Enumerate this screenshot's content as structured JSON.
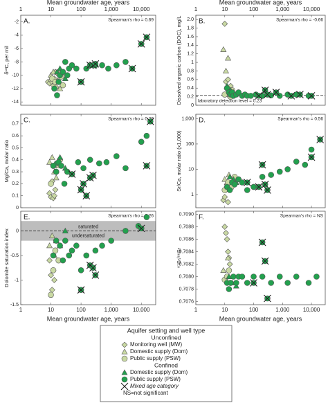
{
  "chart_data": [
    {
      "type": "scatter",
      "panel": "A.",
      "annotation": "Spearman's rho = 0.69",
      "x_label": "Mean groundwater age, years",
      "y_label": "δ¹³C, per mil",
      "xlim": [
        1,
        30000
      ],
      "xticks": [
        1,
        10,
        100,
        {
          "value": 1000,
          "label": "1,000"
        },
        {
          "value": 10000,
          "label": "10,000"
        }
      ],
      "ylim": [
        -14.5,
        -1
      ],
      "yticks": [
        -14,
        -12,
        -10,
        -8,
        -6,
        -4,
        -2
      ],
      "series": [
        {
          "x": [
            8,
            9,
            10,
            11,
            12,
            13,
            14,
            15
          ],
          "values": [
            -11,
            -11.2,
            -10.8,
            -11,
            -11.5,
            -10.5,
            -9.5,
            -11.8
          ]
        },
        {
          "x": [
            10,
            12,
            14,
            17,
            20
          ],
          "values": [
            -10,
            -9.5,
            -11,
            -10.8,
            -12
          ]
        },
        {
          "x": [
            11,
            14,
            18,
            22,
            25
          ],
          "values": [
            -10.5,
            -11,
            -9.8,
            -10.2,
            -11.5
          ]
        },
        {
          "x": [
            16,
            20,
            30
          ],
          "values": [
            -9.5,
            -9,
            -10.5
          ]
        },
        {
          "x": [
            13,
            16,
            18,
            20,
            25,
            30,
            35,
            40,
            50,
            70,
            100,
            150,
            300,
            500,
            800,
            1500,
            3000
          ],
          "values": [
            -12,
            -13,
            -11,
            -10,
            -9.5,
            -8,
            -10,
            -9,
            -8.5,
            -9,
            -11,
            -9,
            -8.5,
            -8.5,
            -9,
            -8.5,
            -8
          ]
        },
        {
          "x": [
            100,
            200,
            250,
            300,
            5000,
            10000,
            15000
          ],
          "values": [
            -11,
            -8.5,
            -8.5,
            -8.3,
            -9,
            -5.3,
            -4.3
          ]
        }
      ]
    },
    {
      "type": "scatter",
      "panel": "B.",
      "annotation": "Spearman's rho = -0.66",
      "x_label": "Mean groundwater age, years",
      "y_label": "Dissolved organic carbon (DOC), mg/L",
      "xlim": [
        1,
        30000
      ],
      "xticks": [
        1,
        10,
        100,
        {
          "value": 1000,
          "label": "1,000"
        },
        {
          "value": 10000,
          "label": "10,000"
        }
      ],
      "ylim": [
        0,
        2.1
      ],
      "yticks": [
        0,
        0.2,
        0.4,
        0.6,
        0.8,
        1,
        1.2,
        1.4,
        1.6,
        1.8,
        {
          "value": 2,
          "label": "2.0"
        }
      ],
      "detection": {
        "value": 0.23,
        "label": "laboratory detection level = 0.23"
      },
      "series": [
        {
          "x": [
            10,
            11,
            12,
            13,
            14,
            15,
            16
          ],
          "values": [
            1.9,
            0.55,
            0.4,
            0.6,
            0.3,
            0.2,
            0.45
          ]
        },
        {
          "x": [
            9,
            11,
            13,
            15
          ],
          "values": [
            1.3,
            0.8,
            1.1,
            0.35
          ]
        },
        {
          "x": [
            10,
            12,
            14,
            16,
            18
          ],
          "values": [
            0.25,
            0.4,
            0.3,
            0.2,
            0.35
          ]
        },
        {
          "x": [
            12,
            16,
            20
          ],
          "values": [
            0.45,
            0.35,
            0.3
          ]
        },
        {
          "x": [
            12,
            14,
            16,
            18,
            20,
            25,
            30,
            40,
            50,
            60,
            80,
            120,
            200,
            400,
            800,
            1500,
            3000,
            8000
          ],
          "values": [
            0.4,
            0.3,
            0.25,
            0.3,
            0.22,
            0.25,
            0.3,
            0.22,
            0.25,
            0.22,
            0.22,
            0.25,
            0.22,
            0.23,
            0.22,
            0.25,
            0.25,
            0.22
          ]
        },
        {
          "x": [
            150,
            250,
            300,
            600,
            2000,
            4000,
            10000
          ],
          "values": [
            0.22,
            0.35,
            0.25,
            0.3,
            0.22,
            0.25,
            0.22
          ]
        }
      ]
    },
    {
      "type": "scatter",
      "panel": "C.",
      "annotation": "Spearman's rho = 0.29",
      "y_label": "Mg/Ca, molar ratio",
      "xlim": [
        1,
        30000
      ],
      "xticks": [
        1,
        10,
        100,
        {
          "value": 1000,
          "label": "1,000"
        },
        {
          "value": 10000,
          "label": "10,000"
        }
      ],
      "ylim": [
        0,
        0.78
      ],
      "yticks": [
        0,
        0.1,
        0.2,
        0.3,
        0.4,
        0.5,
        0.6,
        0.7
      ],
      "series": [
        {
          "x": [
            9,
            10,
            11,
            12,
            13,
            14
          ],
          "values": [
            0.12,
            0.09,
            0.22,
            0.08,
            0.1,
            0.15
          ]
        },
        {
          "x": [
            9,
            11,
            13,
            15,
            18
          ],
          "values": [
            0.38,
            0.42,
            0.3,
            0.25,
            0.35
          ]
        },
        {
          "x": [
            10,
            12,
            15,
            20
          ],
          "values": [
            0.2,
            0.35,
            0.3,
            0.4
          ]
        },
        {
          "x": [
            14,
            20,
            30
          ],
          "values": [
            0.37,
            0.42,
            0.33
          ]
        },
        {
          "x": [
            12,
            15,
            18,
            22,
            28,
            35,
            50,
            80,
            120,
            200,
            400,
            700,
            1500,
            3000,
            10000,
            15000
          ],
          "values": [
            0.35,
            0.3,
            0.38,
            0.35,
            0.2,
            0.3,
            0.28,
            0.38,
            0.33,
            0.4,
            0.37,
            0.38,
            0.43,
            0.33,
            0.55,
            0.6
          ]
        },
        {
          "x": [
            50,
            100,
            120,
            150,
            200,
            250,
            15000,
            20000
          ],
          "values": [
            0.28,
            0.15,
            0.2,
            0.1,
            0.25,
            0.27,
            0.35,
            0.72
          ]
        }
      ]
    },
    {
      "type": "scatter",
      "panel": "D.",
      "annotation": "Spearman's rho = 0.56",
      "y_label": "Sr/Ca, molar ratio (x1,000)",
      "ylog": true,
      "xlim": [
        1,
        30000
      ],
      "xticks": [
        1,
        10,
        100,
        {
          "value": 1000,
          "label": "1,000"
        },
        {
          "value": 10000,
          "label": "10,000"
        }
      ],
      "ylim": [
        0.3,
        1500
      ],
      "yticks": [
        1,
        10,
        100,
        {
          "value": 1000,
          "label": "1,000"
        }
      ],
      "series": [
        {
          "x": [
            9,
            10,
            11,
            12,
            13
          ],
          "values": [
            0.6,
            0.8,
            1.5,
            2,
            0.5
          ]
        },
        {
          "x": [
            10,
            12,
            14,
            16
          ],
          "values": [
            4,
            3,
            6,
            2
          ]
        },
        {
          "x": [
            10,
            13,
            17,
            22
          ],
          "values": [
            1.5,
            3,
            2,
            5
          ]
        },
        {
          "x": [
            15,
            20,
            25
          ],
          "values": [
            5,
            4,
            3
          ]
        },
        {
          "x": [
            12,
            15,
            18,
            22,
            30,
            40,
            60,
            100,
            200,
            400,
            800,
            1500,
            3000,
            6000,
            10000
          ],
          "values": [
            2,
            1.5,
            3,
            2.5,
            4,
            3,
            1.5,
            2,
            5,
            6,
            8,
            10,
            20,
            15,
            60
          ]
        },
        {
          "x": [
            60,
            150,
            200,
            250,
            300,
            10000,
            20000
          ],
          "values": [
            3,
            2,
            15,
            2.5,
            1.5,
            30,
            150
          ]
        }
      ]
    },
    {
      "type": "scatter",
      "panel": "E.",
      "annotation": "Spearman's rho = 0.26",
      "x_label": "Mean groundwater age, years",
      "y_label": "Dolomite saturation index",
      "xlim": [
        1,
        30000
      ],
      "xticks": [
        1,
        10,
        100,
        {
          "value": 1000,
          "label": "1,000"
        },
        {
          "value": 10000,
          "label": "10,000"
        }
      ],
      "ylim": [
        -1.5,
        0.4
      ],
      "yticks": [
        -1.5,
        -1,
        -0.5,
        0
      ],
      "band": {
        "range": [
          -0.2,
          0.2
        ],
        "line": 0,
        "labels": [
          "saturated",
          "undersaturated"
        ]
      },
      "series": [
        {
          "x": [
            9,
            10,
            11,
            12,
            13
          ],
          "values": [
            -0.6,
            -0.9,
            -1.2,
            -0.8,
            -1
          ]
        },
        {
          "x": [
            9,
            11,
            13,
            15
          ],
          "values": [
            -0.3,
            -0.1,
            -0.5,
            -0.2
          ]
        },
        {
          "x": [
            10,
            12,
            14,
            18
          ],
          "values": [
            -1.3,
            -0.8,
            -0.4,
            -0.6
          ]
        },
        {
          "x": [
            15,
            20,
            30
          ],
          "values": [
            -0.2,
            -0.3,
            0
          ]
        },
        {
          "x": [
            12,
            15,
            20,
            25,
            30,
            40,
            50,
            70,
            100,
            150,
            300,
            500,
            1000,
            3000,
            8000,
            15000
          ],
          "values": [
            -0.5,
            -0.2,
            -0.3,
            -0.6,
            -0.2,
            -0.5,
            -0.4,
            -0.3,
            -0.8,
            -0.5,
            -0.4,
            -0.3,
            -0.2,
            0,
            0.1,
            0.28
          ]
        },
        {
          "x": [
            100,
            200,
            250,
            300,
            10000
          ],
          "values": [
            -1.2,
            -0.7,
            -0.75,
            -0.9,
            0.05
          ]
        }
      ]
    },
    {
      "type": "scatter",
      "panel": "F.",
      "annotation": "Spearman's rho = NS",
      "x_label": "Mean groundwater age, years",
      "y_label": "⁸⁷Sr/⁸⁶Sr",
      "xlim": [
        1,
        30000
      ],
      "xticks": [
        1,
        10,
        100,
        {
          "value": 1000,
          "label": "1,000"
        },
        {
          "value": 10000,
          "label": "10,000"
        }
      ],
      "ylim": [
        0.70755,
        0.70905
      ],
      "yticks": [
        0.7076,
        0.7078,
        {
          "value": 0.708,
          "label": "0.7080"
        },
        0.7082,
        0.7084,
        0.7086,
        0.7088,
        {
          "value": 0.709,
          "label": "0.7090"
        }
      ],
      "series": [
        {
          "x": [
            10,
            11,
            12,
            13,
            14,
            15
          ],
          "values": [
            0.7088,
            0.7087,
            0.7086,
            0.7084,
            0.7083,
            0.7082
          ]
        },
        {
          "x": [
            9,
            11,
            13,
            15
          ],
          "values": [
            0.7081,
            0.708,
            0.7083,
            0.7079
          ]
        },
        {
          "x": [
            10,
            12,
            14,
            16
          ],
          "values": [
            0.70795,
            0.708,
            0.7081,
            0.7079
          ]
        },
        {
          "x": [
            14,
            18,
            25
          ],
          "values": [
            0.708,
            0.7079,
            0.70785
          ]
        },
        {
          "x": [
            12,
            14,
            16,
            20,
            25,
            30,
            40,
            60,
            100,
            200,
            400,
            800,
            1500,
            3000,
            8000,
            15000
          ],
          "values": [
            0.7079,
            0.7078,
            0.7079,
            0.708,
            0.7079,
            0.708,
            0.708,
            0.7079,
            0.708,
            0.708,
            0.7079,
            0.708,
            0.7079,
            0.708,
            0.7079,
            0.708
          ]
        },
        {
          "x": [
            100,
            200,
            250,
            300
          ],
          "values": [
            0.7079,
            0.70855,
            0.70825,
            0.70765
          ]
        }
      ]
    }
  ],
  "legend": {
    "title": "Aquifer setting and well type",
    "groups": [
      {
        "heading": "Unconfined",
        "items": [
          {
            "name": "Monitoring well (MW)",
            "marker": "diamond",
            "color": "#c9d9a3"
          },
          {
            "name": "Domestic supply (Dom)",
            "marker": "triangle",
            "color": "#c9d9a3"
          },
          {
            "name": "Public supply (PSW)",
            "marker": "circle",
            "color": "#c9d9a3"
          }
        ]
      },
      {
        "heading": "Confined",
        "items": [
          {
            "name": "Domestic supply (Dom)",
            "marker": "triangle",
            "color": "#23a04e"
          },
          {
            "name": "Public supply (PSW)",
            "marker": "circle",
            "color": "#23a04e"
          }
        ]
      }
    ],
    "mixed": {
      "name": "Mixed age category",
      "marker": "x",
      "color": "#23a04e"
    },
    "note": "NS=not significant"
  }
}
